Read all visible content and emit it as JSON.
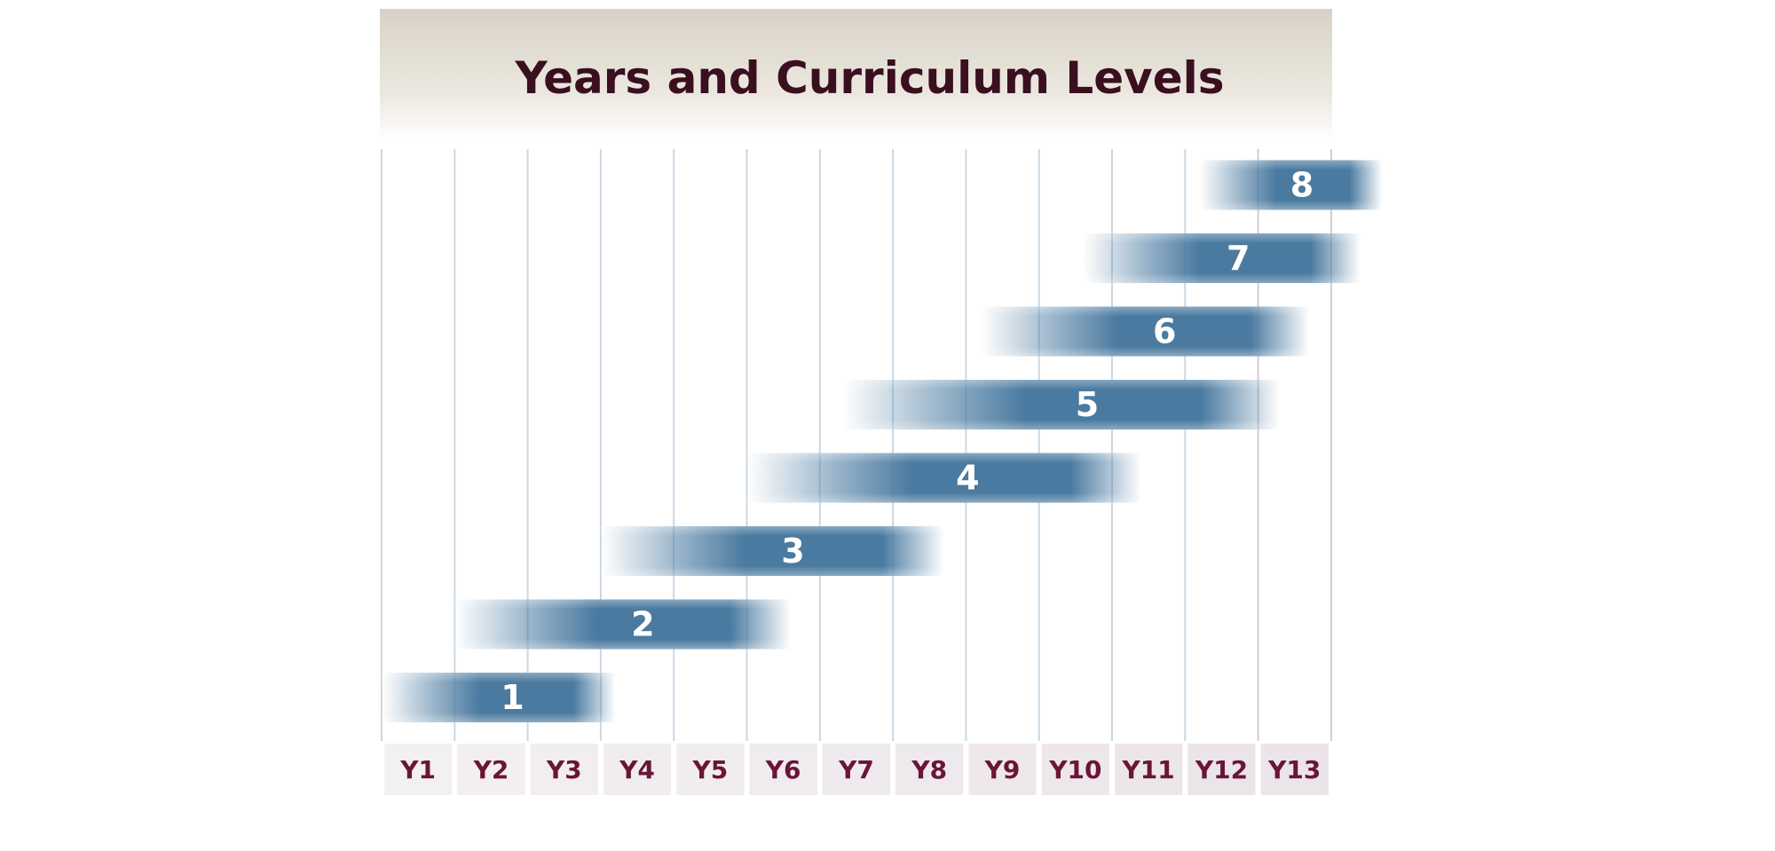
{
  "chart_data": {
    "type": "bar",
    "subtype": "range-timeline",
    "title": "Years and Curriculum Levels",
    "categories": [
      "Y1",
      "Y2",
      "Y3",
      "Y4",
      "Y5",
      "Y6",
      "Y7",
      "Y8",
      "Y9",
      "Y10",
      "Y11",
      "Y12",
      "Y13"
    ],
    "series": [
      {
        "name": "1",
        "start": 1.0,
        "end": 4.2
      },
      {
        "name": "2",
        "start": 2.0,
        "end": 6.6
      },
      {
        "name": "3",
        "start": 4.0,
        "end": 8.7
      },
      {
        "name": "4",
        "start": 6.0,
        "end": 11.4
      },
      {
        "name": "5",
        "start": 7.3,
        "end": 13.3
      },
      {
        "name": "6",
        "start": 9.2,
        "end": 13.7
      },
      {
        "name": "7",
        "start": 10.6,
        "end": 14.4
      },
      {
        "name": "8",
        "start": 12.2,
        "end": 14.7
      }
    ],
    "xlabel": "",
    "ylabel": "",
    "grid": true,
    "colors": {
      "bar": "#4a7aa0",
      "title_text": "#3a0f1f",
      "year_text": "#6a1538",
      "header_top": "#d8d2c5",
      "header_bottom": "#ffffff",
      "grid_line": "#c9d8e3",
      "year_box": "#eae3e7"
    }
  }
}
